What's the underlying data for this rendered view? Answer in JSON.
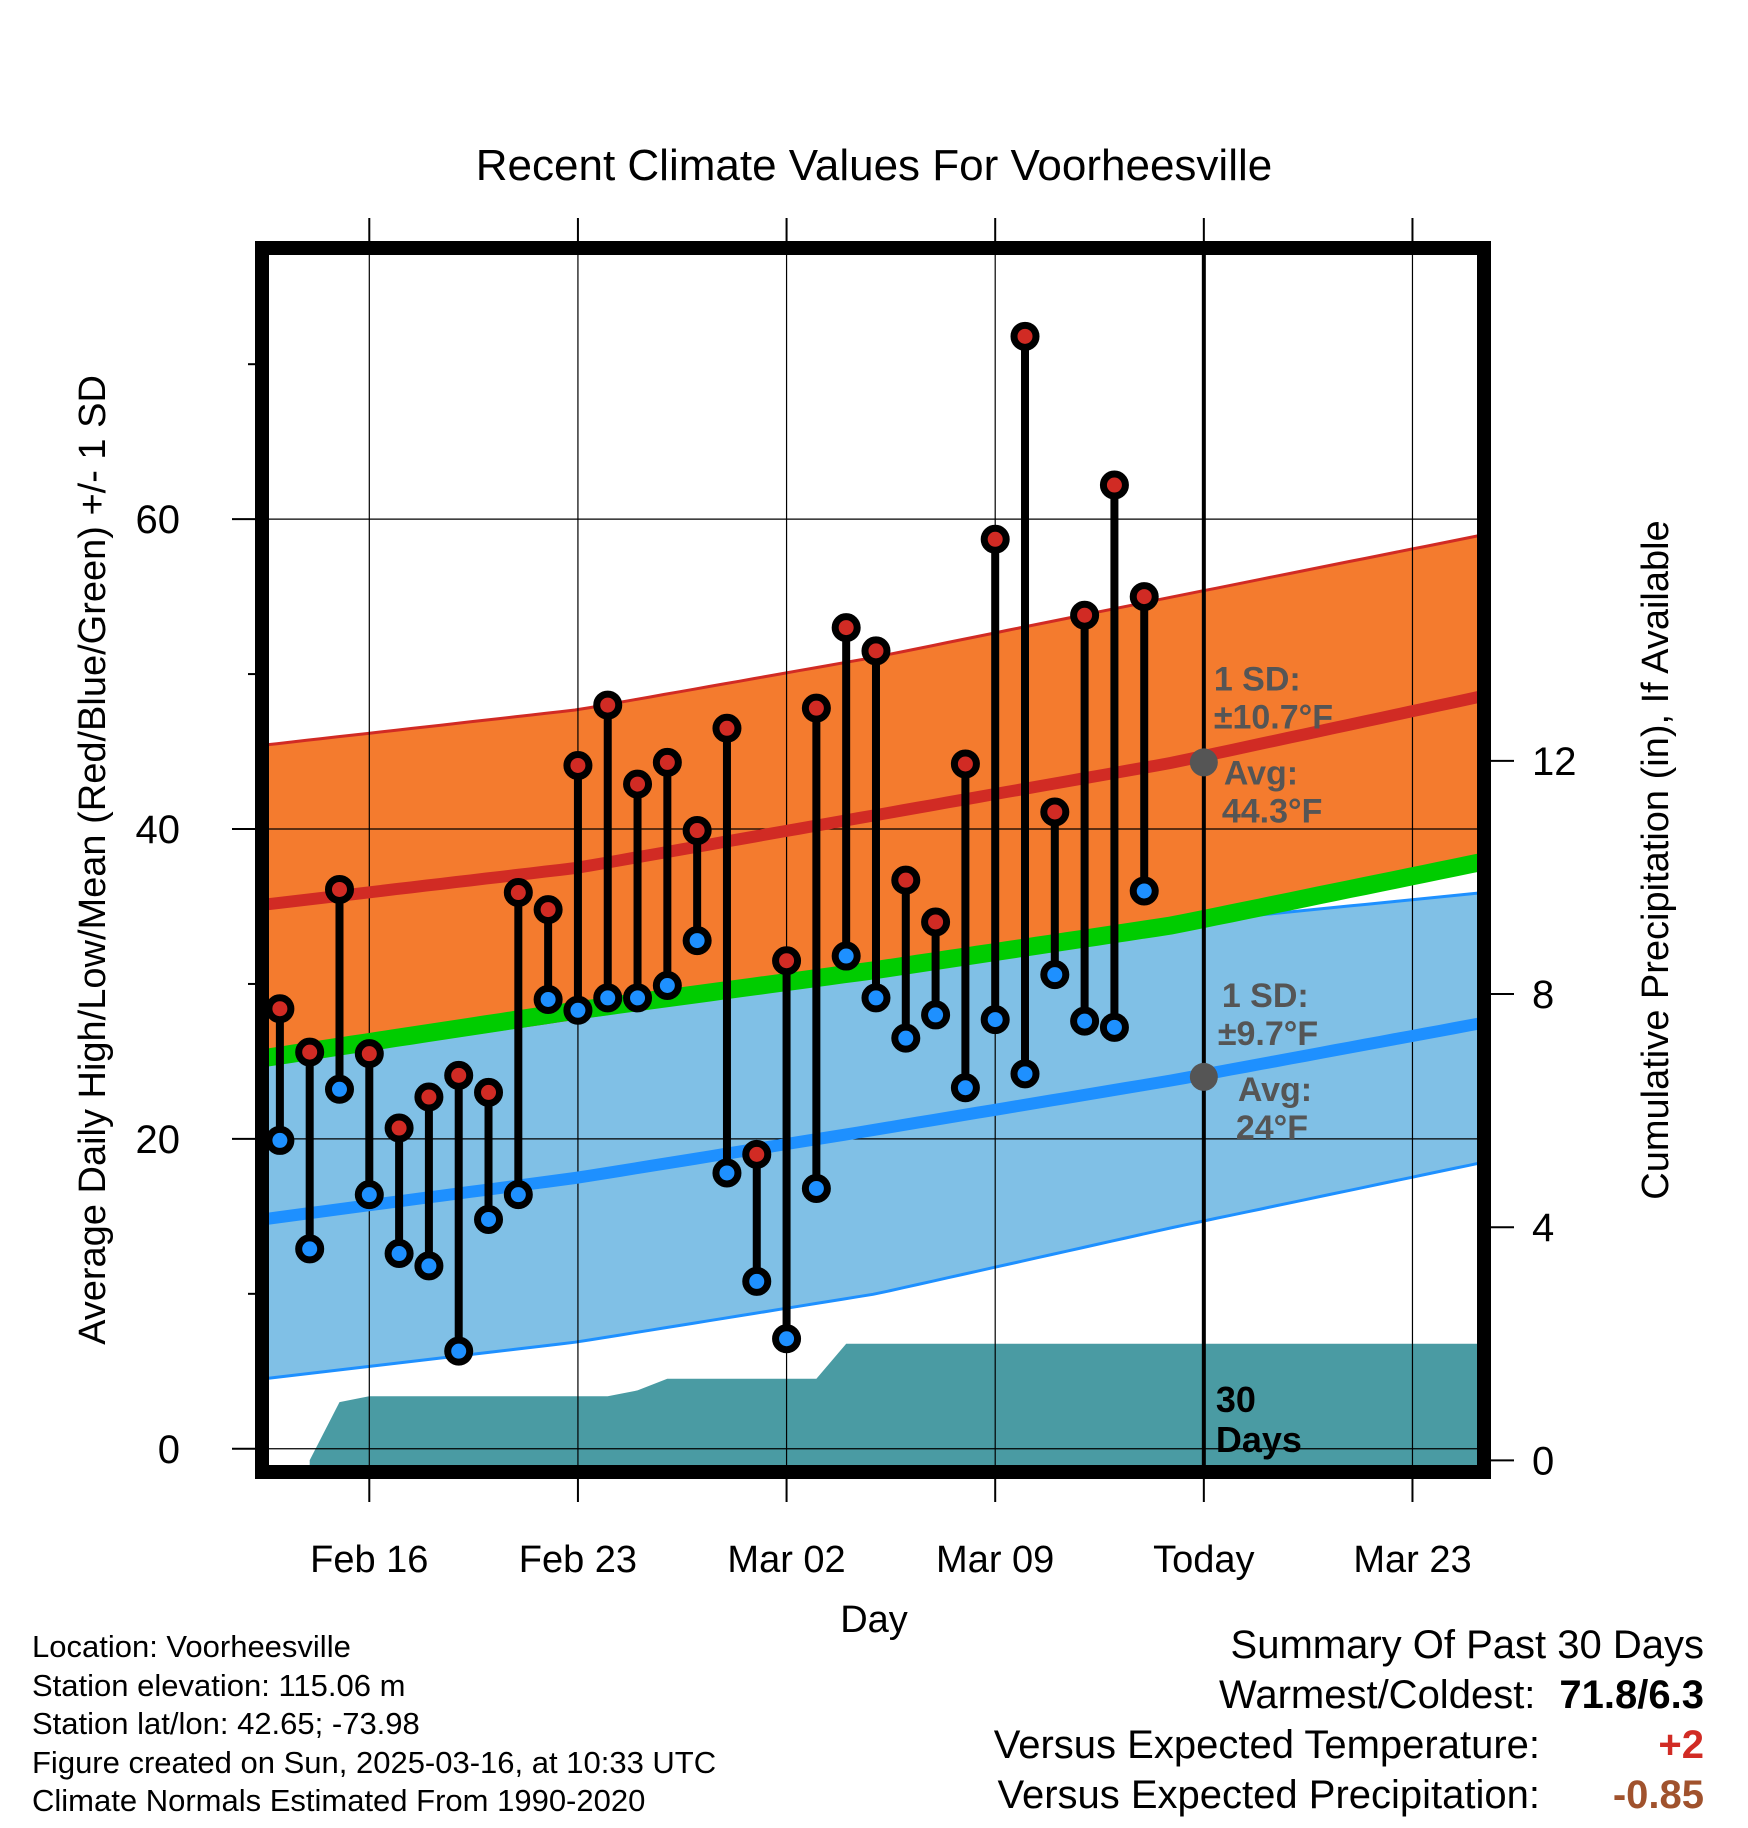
{
  "chart_data": {
    "type": "line",
    "title": "Recent Climate Values For Voorheesville",
    "xlabel": "Day",
    "ylabel": "Average Daily High/Low/Mean (Red/Blue/Green) +/- 1 SD",
    "y2label": "Cumulative Precipitation (in), If Available",
    "ylim": [
      -1.5,
      77.5
    ],
    "y2lim": [
      -0.2,
      20.8
    ],
    "xlim": [
      -0.6,
      40.4
    ],
    "xticks": [
      {
        "day": 3,
        "label": "Feb 16"
      },
      {
        "day": 10,
        "label": "Feb 23"
      },
      {
        "day": 17,
        "label": "Mar 02"
      },
      {
        "day": 24,
        "label": "Mar 09"
      },
      {
        "day": 31,
        "label": "Today"
      },
      {
        "day": 38,
        "label": "Mar 23"
      }
    ],
    "yticks": [
      0,
      20,
      40,
      60
    ],
    "yminor_ticks": [
      10,
      30,
      50,
      70
    ],
    "y2ticks": [
      0,
      4,
      8,
      12
    ],
    "grid": true,
    "today_day": 31,
    "observed": {
      "days": [
        0,
        1,
        2,
        3,
        4,
        5,
        6,
        7,
        8,
        9,
        10,
        11,
        12,
        13,
        14,
        15,
        16,
        17,
        18,
        19,
        20,
        21,
        22,
        23,
        24,
        25,
        26,
        27,
        28,
        29,
        30
      ],
      "highs": [
        28.4,
        25.6,
        36.1,
        25.5,
        20.7,
        22.7,
        24.1,
        23.0,
        35.9,
        34.8,
        44.1,
        48.0,
        42.9,
        44.3,
        39.9,
        46.5,
        19.0,
        31.5,
        47.8,
        53.0,
        51.5,
        36.7,
        34.0,
        44.2,
        58.7,
        71.8,
        41.1,
        53.8,
        62.2,
        55.0,
        null
      ],
      "lows": [
        19.9,
        12.9,
        23.2,
        16.4,
        12.6,
        11.8,
        6.3,
        14.8,
        16.4,
        29.0,
        28.3,
        29.1,
        29.1,
        29.9,
        32.8,
        17.8,
        10.8,
        7.1,
        16.8,
        31.8,
        29.1,
        26.5,
        28.0,
        23.3,
        27.7,
        24.2,
        30.6,
        27.6,
        27.2,
        36.0,
        null
      ]
    },
    "normals": {
      "days": [
        -0.6,
        10,
        20,
        30,
        40.4
      ],
      "avg_high": [
        35.1,
        37.5,
        40.9,
        44.3,
        48.6
      ],
      "avg_high_plus_sd": [
        45.4,
        47.7,
        51.1,
        55.0,
        59.0
      ],
      "avg_high_minus_sd": [
        24.8,
        27.8,
        30.7,
        33.8,
        38.4
      ],
      "avg_low": [
        14.8,
        17.5,
        20.6,
        23.8,
        27.5
      ],
      "avg_low_plus_sd": [
        26.5,
        29.0,
        31.6,
        33.9,
        35.9
      ],
      "avg_low_minus_sd": [
        4.5,
        6.9,
        10.0,
        14.3,
        18.5
      ],
      "avg_mean": [
        25.2,
        28.3,
        30.9,
        33.8,
        37.9
      ]
    },
    "precip": {
      "days": [
        1.0,
        2.0,
        3.0,
        11.0,
        12.0,
        13.0,
        18.0,
        19.0,
        40.4
      ],
      "cumulative": [
        0,
        1.0,
        1.1,
        1.1,
        1.2,
        1.4,
        1.4,
        2.0,
        2.0
      ]
    },
    "annotations": {
      "high_sd_label": "1 SD:",
      "high_sd_value": "±10.7°F",
      "high_avg_label": "Avg:",
      "high_avg_value": "44.3°F",
      "high_avg": 44.3,
      "low_sd_label": "1 SD:",
      "low_sd_value": "±9.7°F",
      "low_avg_label": "Avg:",
      "low_avg_value": "24°F",
      "low_avg": 24.0,
      "days_label_1": "30",
      "days_label_2": "Days"
    },
    "colors": {
      "high_band": "#f47b2e",
      "high_line": "#d12b24",
      "low_band": "#80c0e6",
      "low_line": "#1e90ff",
      "mean_line": "#00cc00",
      "precip": "#4a9ba3",
      "high_point": "#d12b24",
      "low_point": "#1e90ff",
      "annotation": "#555555"
    }
  },
  "footer": {
    "location": "Location: Voorheesville",
    "elevation": "Station elevation: 115.06 m",
    "latlon": "Station lat/lon: 42.65; -73.98",
    "created": "Figure created on Sun, 2025-03-16, at 10:33 UTC",
    "normals": "Climate Normals Estimated From 1990-2020"
  },
  "summary": {
    "title": "Summary Of Past 30 Days",
    "warmest_label": "Warmest/Coldest:",
    "warmest_value": "71.8/6.3",
    "temp_label": "Versus Expected Temperature:",
    "temp_value": "+2",
    "temp_color": "#d12b24",
    "precip_label": "Versus Expected Precipitation:",
    "precip_value": "-0.85",
    "precip_color": "#a0522d"
  }
}
